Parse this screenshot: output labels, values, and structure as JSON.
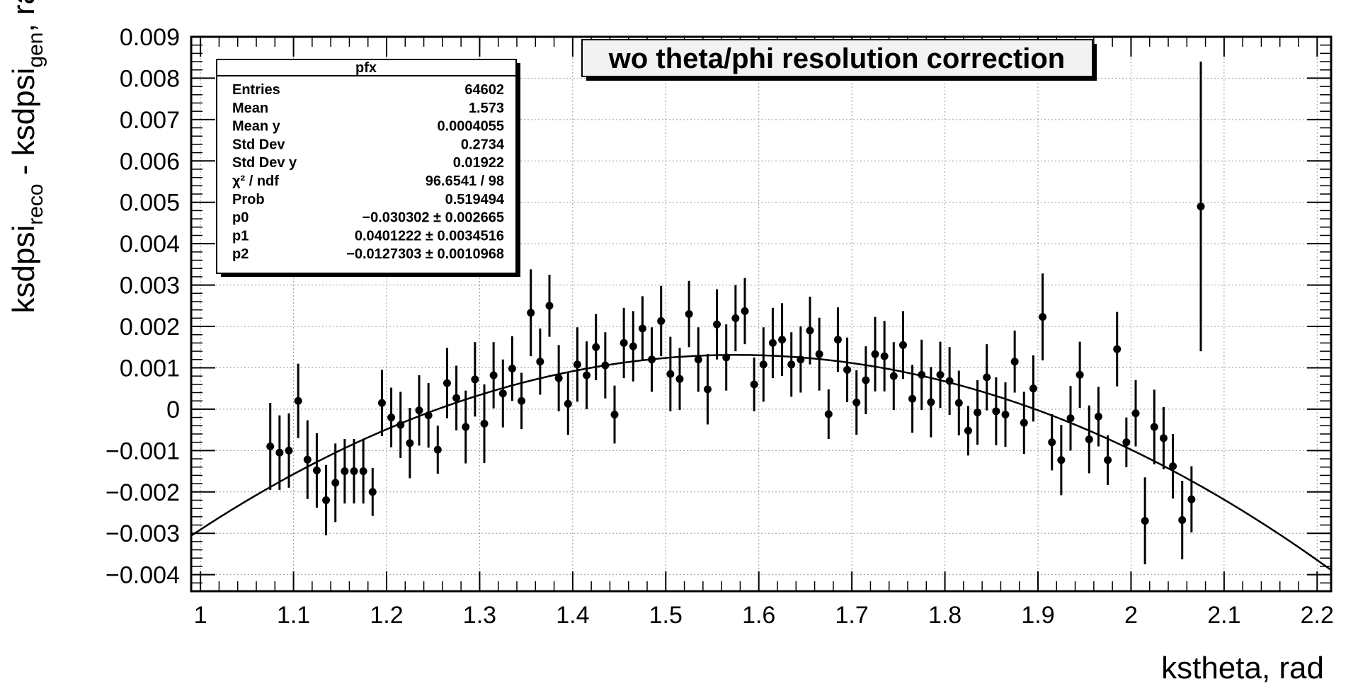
{
  "chart_data": {
    "type": "scatter",
    "title": "wo theta/phi resolution correction",
    "xlabel": "kstheta, rad",
    "ylabel_parts": {
      "main": "ksdpsi",
      "sub1": "reco",
      "mid": " - ksdpsi",
      "sub2": "gen",
      "tail": ", rad"
    },
    "xlim": [
      0.99,
      2.215
    ],
    "ylim": [
      -0.0044,
      0.009
    ],
    "grid": true,
    "x_ticks": [
      {
        "v": 1,
        "label": "1"
      },
      {
        "v": 1.1,
        "label": "1.1"
      },
      {
        "v": 1.2,
        "label": "1.2"
      },
      {
        "v": 1.3,
        "label": "1.3"
      },
      {
        "v": 1.4,
        "label": "1.4"
      },
      {
        "v": 1.5,
        "label": "1.5"
      },
      {
        "v": 1.6,
        "label": "1.6"
      },
      {
        "v": 1.7,
        "label": "1.7"
      },
      {
        "v": 1.8,
        "label": "1.8"
      },
      {
        "v": 1.9,
        "label": "1.9"
      },
      {
        "v": 2,
        "label": "2"
      },
      {
        "v": 2.1,
        "label": "2.1"
      },
      {
        "v": 2.2,
        "label": "2.2"
      }
    ],
    "y_ticks": [
      {
        "v": -0.004,
        "label": "−0.004"
      },
      {
        "v": -0.003,
        "label": "−0.003"
      },
      {
        "v": -0.002,
        "label": "−0.002"
      },
      {
        "v": -0.001,
        "label": "−0.001"
      },
      {
        "v": 0,
        "label": "0"
      },
      {
        "v": 0.001,
        "label": "0.001"
      },
      {
        "v": 0.002,
        "label": "0.002"
      },
      {
        "v": 0.003,
        "label": "0.003"
      },
      {
        "v": 0.004,
        "label": "0.004"
      },
      {
        "v": 0.005,
        "label": "0.005"
      },
      {
        "v": 0.006,
        "label": "0.006"
      },
      {
        "v": 0.007,
        "label": "0.007"
      },
      {
        "v": 0.008,
        "label": "0.008"
      },
      {
        "v": 0.009,
        "label": "0.009"
      }
    ],
    "points": [
      [
        1.075,
        -0.0009,
        0.00105
      ],
      [
        1.085,
        -0.00105,
        0.0009
      ],
      [
        1.095,
        -0.001,
        0.0009
      ],
      [
        1.105,
        0.0002,
        0.0009
      ],
      [
        1.115,
        -0.00122,
        0.00095
      ],
      [
        1.125,
        -0.00148,
        0.0009
      ],
      [
        1.135,
        -0.0022,
        0.00085
      ],
      [
        1.145,
        -0.00178,
        0.00095
      ],
      [
        1.155,
        -0.0015,
        0.00078
      ],
      [
        1.165,
        -0.0015,
        0.00078
      ],
      [
        1.175,
        -0.0015,
        0.00078
      ],
      [
        1.185,
        -0.002,
        0.00058
      ],
      [
        1.195,
        0.00015,
        0.0008
      ],
      [
        1.205,
        -0.0002,
        0.00072
      ],
      [
        1.215,
        -0.00038,
        0.0008
      ],
      [
        1.225,
        -0.00082,
        0.00085
      ],
      [
        1.235,
        -3e-05,
        0.00085
      ],
      [
        1.245,
        -0.00015,
        0.00078
      ],
      [
        1.255,
        -0.00098,
        0.00058
      ],
      [
        1.265,
        0.00063,
        0.00085
      ],
      [
        1.275,
        0.00027,
        0.00078
      ],
      [
        1.285,
        -0.00043,
        0.00088
      ],
      [
        1.295,
        0.00072,
        0.0009
      ],
      [
        1.305,
        -0.00035,
        0.00095
      ],
      [
        1.315,
        0.00082,
        0.0008
      ],
      [
        1.325,
        0.00038,
        0.00082
      ],
      [
        1.335,
        0.00098,
        0.00078
      ],
      [
        1.345,
        0.0002,
        0.00068
      ],
      [
        1.355,
        0.00233,
        0.00105
      ],
      [
        1.365,
        0.00115,
        0.0008
      ],
      [
        1.375,
        0.0025,
        0.00075
      ],
      [
        1.385,
        0.00075,
        0.0008
      ],
      [
        1.395,
        0.00013,
        0.00075
      ],
      [
        1.405,
        0.00108,
        0.0009
      ],
      [
        1.415,
        0.00082,
        0.00082
      ],
      [
        1.425,
        0.0015,
        0.0008
      ],
      [
        1.435,
        0.00106,
        0.0008
      ],
      [
        1.445,
        -0.00013,
        0.0007
      ],
      [
        1.455,
        0.0016,
        0.00085
      ],
      [
        1.465,
        0.00152,
        0.00085
      ],
      [
        1.475,
        0.00195,
        0.00078
      ],
      [
        1.485,
        0.0012,
        0.00078
      ],
      [
        1.495,
        0.00213,
        0.00085
      ],
      [
        1.505,
        0.00085,
        0.0009
      ],
      [
        1.515,
        0.00073,
        0.00075
      ],
      [
        1.525,
        0.0023,
        0.0008
      ],
      [
        1.535,
        0.0012,
        0.00078
      ],
      [
        1.545,
        0.00048,
        0.00085
      ],
      [
        1.555,
        0.00205,
        0.00085
      ],
      [
        1.565,
        0.00125,
        0.0008
      ],
      [
        1.575,
        0.0022,
        0.0008
      ],
      [
        1.585,
        0.00237,
        0.0008
      ],
      [
        1.595,
        0.0006,
        0.00065
      ],
      [
        1.605,
        0.00108,
        0.0009
      ],
      [
        1.615,
        0.0016,
        0.00085
      ],
      [
        1.625,
        0.00168,
        0.00088
      ],
      [
        1.635,
        0.00108,
        0.00078
      ],
      [
        1.645,
        0.0012,
        0.0008
      ],
      [
        1.655,
        0.0019,
        0.00082
      ],
      [
        1.665,
        0.00133,
        0.00088
      ],
      [
        1.675,
        -0.00012,
        0.0006
      ],
      [
        1.685,
        0.00168,
        0.00078
      ],
      [
        1.695,
        0.00095,
        0.00078
      ],
      [
        1.705,
        0.00016,
        0.00078
      ],
      [
        1.715,
        0.0007,
        0.00082
      ],
      [
        1.725,
        0.00133,
        0.0009
      ],
      [
        1.735,
        0.00128,
        0.00085
      ],
      [
        1.745,
        0.0008,
        0.00082
      ],
      [
        1.755,
        0.00155,
        0.00082
      ],
      [
        1.765,
        0.00025,
        0.00082
      ],
      [
        1.775,
        0.00083,
        0.00085
      ],
      [
        1.785,
        0.00017,
        0.00085
      ],
      [
        1.795,
        0.00083,
        0.0008
      ],
      [
        1.805,
        0.00068,
        0.00082
      ],
      [
        1.815,
        0.00015,
        0.00078
      ],
      [
        1.825,
        -0.00052,
        0.0006
      ],
      [
        1.835,
        -8e-05,
        0.00078
      ],
      [
        1.845,
        0.00077,
        0.0008
      ],
      [
        1.855,
        -5e-05,
        0.00082
      ],
      [
        1.865,
        -0.00013,
        0.00078
      ],
      [
        1.875,
        0.00115,
        0.00075
      ],
      [
        1.885,
        -0.00033,
        0.00075
      ],
      [
        1.895,
        0.0005,
        0.0008
      ],
      [
        1.905,
        0.00223,
        0.00105
      ],
      [
        1.915,
        -0.0008,
        0.00068
      ],
      [
        1.925,
        -0.00123,
        0.00085
      ],
      [
        1.935,
        -0.00022,
        0.00078
      ],
      [
        1.945,
        0.00083,
        0.0008
      ],
      [
        1.955,
        -0.00073,
        0.00082
      ],
      [
        1.965,
        -0.00018,
        0.00072
      ],
      [
        1.975,
        -0.00123,
        0.0006
      ],
      [
        1.985,
        0.00145,
        0.0009
      ],
      [
        1.995,
        -0.0008,
        0.0006
      ],
      [
        2.005,
        -0.0001,
        0.0008
      ],
      [
        2.015,
        -0.0027,
        0.00105
      ],
      [
        2.025,
        -0.00043,
        0.0009
      ],
      [
        2.035,
        -0.0007,
        0.00075
      ],
      [
        2.045,
        -0.00138,
        0.00078
      ],
      [
        2.055,
        -0.00268,
        0.00095
      ],
      [
        2.065,
        -0.00218,
        0.0008
      ],
      [
        2.075,
        0.0049,
        0.0035
      ]
    ],
    "fit_params": [
      -0.030302,
      0.0401222,
      -0.0127303
    ],
    "fit_range": [
      0.99,
      2.215
    ]
  },
  "stats_box": {
    "title": "pfx",
    "rows": [
      {
        "label": "Entries",
        "value": "64602"
      },
      {
        "label": "Mean",
        "value": "1.573"
      },
      {
        "label": "Mean y",
        "value": "0.0004055"
      },
      {
        "label": "Std Dev",
        "value": "0.2734"
      },
      {
        "label": "Std Dev y",
        "value": "0.01922"
      },
      {
        "label": "χ² / ndf",
        "value": "96.6541 / 98"
      },
      {
        "label": "Prob",
        "value": "0.519494"
      },
      {
        "label": "p0",
        "value": "−0.030302 ± 0.002665"
      },
      {
        "label": "p1",
        "value": "0.0401222 ± 0.0034516"
      },
      {
        "label": "p2",
        "value": "−0.0127303 ± 0.0010968"
      }
    ]
  }
}
